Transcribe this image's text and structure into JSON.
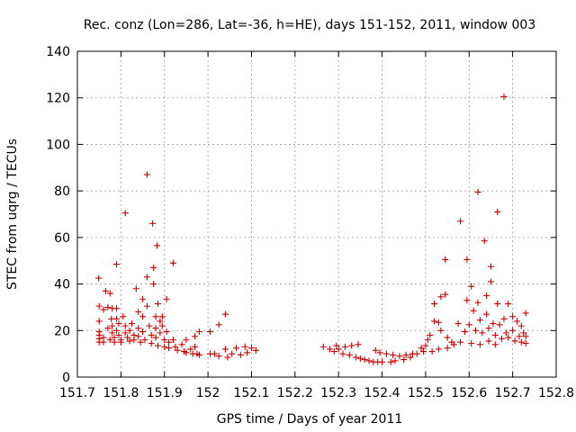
{
  "chart_data": {
    "type": "scatter",
    "title": "Rec. conz (Lon=286, Lat=-36, h=HE), days 151-152, 2011, window 003",
    "xlabel": "GPS time / Days of year 2011",
    "ylabel": "STEC from uqrg / TECUs",
    "xlim": [
      151.7,
      152.8
    ],
    "ylim": [
      0,
      140
    ],
    "x_ticks": [
      151.7,
      151.8,
      151.9,
      152.0,
      152.1,
      152.2,
      152.3,
      152.4,
      152.5,
      152.6,
      152.7,
      152.8
    ],
    "x_tick_labels": [
      "151.7",
      "151.8",
      "151.9",
      "152",
      "152.1",
      "152.2",
      "152.3",
      "152.4",
      "152.5",
      "152.6",
      "152.7",
      "152.8"
    ],
    "y_ticks": [
      0,
      20,
      40,
      60,
      80,
      100,
      120,
      140
    ],
    "y_tick_labels": [
      "0",
      "20",
      "40",
      "60",
      "80",
      "100",
      "120",
      "140"
    ],
    "grid": true,
    "marker": "+",
    "marker_color": "#cc0000",
    "series": [
      {
        "points": [
          [
            151.749,
            42.5
          ],
          [
            151.75,
            30.5
          ],
          [
            151.75,
            24
          ],
          [
            151.75,
            19.5
          ],
          [
            151.75,
            18
          ],
          [
            151.75,
            16.5
          ],
          [
            151.75,
            15
          ],
          [
            151.76,
            29
          ],
          [
            151.76,
            17
          ],
          [
            151.76,
            15
          ],
          [
            151.765,
            37
          ],
          [
            151.77,
            30
          ],
          [
            151.77,
            21
          ],
          [
            151.775,
            36
          ],
          [
            151.775,
            16
          ],
          [
            151.778,
            25
          ],
          [
            151.78,
            29.5
          ],
          [
            151.78,
            22
          ],
          [
            151.78,
            19
          ],
          [
            151.785,
            17
          ],
          [
            151.785,
            15
          ],
          [
            151.79,
            29.5
          ],
          [
            151.79,
            48.5
          ],
          [
            151.79,
            25
          ],
          [
            151.79,
            20
          ],
          [
            151.795,
            23
          ],
          [
            151.795,
            18
          ],
          [
            151.8,
            16
          ],
          [
            151.8,
            15
          ],
          [
            151.805,
            26
          ],
          [
            151.81,
            70.5
          ],
          [
            151.81,
            22
          ],
          [
            151.81,
            19
          ],
          [
            151.815,
            17
          ],
          [
            151.82,
            20
          ],
          [
            151.82,
            15.5
          ],
          [
            151.825,
            23
          ],
          [
            151.83,
            18
          ],
          [
            151.83,
            16
          ],
          [
            151.835,
            38
          ],
          [
            151.84,
            28
          ],
          [
            151.84,
            21
          ],
          [
            151.84,
            17.5
          ],
          [
            151.845,
            15
          ],
          [
            151.85,
            33.5
          ],
          [
            151.85,
            26
          ],
          [
            151.85,
            19.5
          ],
          [
            151.855,
            16
          ],
          [
            151.86,
            87
          ],
          [
            151.86,
            43
          ],
          [
            151.86,
            30.5
          ],
          [
            151.865,
            22
          ],
          [
            151.87,
            18
          ],
          [
            151.87,
            14.5
          ],
          [
            151.873,
            66
          ],
          [
            151.875,
            47
          ],
          [
            151.875,
            40
          ],
          [
            151.88,
            26
          ],
          [
            151.88,
            21
          ],
          [
            151.88,
            17
          ],
          [
            151.883,
            56.5
          ],
          [
            151.885,
            31.5
          ],
          [
            151.885,
            13.5
          ],
          [
            151.89,
            24
          ],
          [
            151.89,
            19
          ],
          [
            151.895,
            26
          ],
          [
            151.895,
            22
          ],
          [
            151.9,
            16
          ],
          [
            151.9,
            13
          ],
          [
            151.905,
            33.5
          ],
          [
            151.905,
            19.5
          ],
          [
            151.91,
            15
          ],
          [
            151.91,
            12.5
          ],
          [
            151.92,
            49
          ],
          [
            151.92,
            16
          ],
          [
            151.925,
            13
          ],
          [
            151.93,
            11.5
          ],
          [
            151.94,
            14
          ],
          [
            151.945,
            11
          ],
          [
            151.95,
            16
          ],
          [
            151.95,
            10.5
          ],
          [
            151.96,
            12
          ],
          [
            151.965,
            10
          ],
          [
            151.97,
            17.5
          ],
          [
            151.97,
            13
          ],
          [
            151.975,
            10
          ],
          [
            151.98,
            19.5
          ],
          [
            151.98,
            9.5
          ],
          [
            152.005,
            19.5
          ],
          [
            152.005,
            10
          ],
          [
            152.015,
            10
          ],
          [
            152.025,
            22.5
          ],
          [
            152.025,
            9
          ],
          [
            152.04,
            27
          ],
          [
            152.04,
            12
          ],
          [
            152.045,
            8.5
          ],
          [
            152.055,
            10
          ],
          [
            152.065,
            12.5
          ],
          [
            152.075,
            9.5
          ],
          [
            152.085,
            13
          ],
          [
            152.09,
            10.5
          ],
          [
            152.1,
            12.5
          ],
          [
            152.11,
            11.5
          ],
          [
            152.265,
            13
          ],
          [
            152.28,
            12
          ],
          [
            152.29,
            11
          ],
          [
            152.295,
            13.5
          ],
          [
            152.3,
            12
          ],
          [
            152.31,
            10
          ],
          [
            152.315,
            13
          ],
          [
            152.325,
            9.5
          ],
          [
            152.33,
            13.5
          ],
          [
            152.34,
            8.5
          ],
          [
            152.345,
            14
          ],
          [
            152.35,
            8
          ],
          [
            152.36,
            7.5
          ],
          [
            152.37,
            7
          ],
          [
            152.38,
            6.5
          ],
          [
            152.385,
            11.5
          ],
          [
            152.39,
            6.5
          ],
          [
            152.395,
            10.5
          ],
          [
            152.4,
            6.5
          ],
          [
            152.41,
            10
          ],
          [
            152.42,
            6.5
          ],
          [
            152.425,
            9.5
          ],
          [
            152.43,
            7
          ],
          [
            152.44,
            9
          ],
          [
            152.45,
            7.5
          ],
          [
            152.455,
            9.5
          ],
          [
            152.465,
            8.5
          ],
          [
            152.47,
            10
          ],
          [
            152.48,
            10
          ],
          [
            152.49,
            12.5
          ],
          [
            152.495,
            11
          ],
          [
            152.5,
            13.5
          ],
          [
            152.505,
            16
          ],
          [
            152.51,
            18
          ],
          [
            152.515,
            11
          ],
          [
            152.52,
            31.5
          ],
          [
            152.52,
            24
          ],
          [
            152.53,
            23.5
          ],
          [
            152.53,
            12
          ],
          [
            152.535,
            34.5
          ],
          [
            152.535,
            20
          ],
          [
            152.545,
            50.5
          ],
          [
            152.545,
            35.5
          ],
          [
            152.55,
            17
          ],
          [
            152.55,
            12.5
          ],
          [
            152.56,
            15
          ],
          [
            152.565,
            14
          ],
          [
            152.575,
            23
          ],
          [
            152.58,
            67
          ],
          [
            152.58,
            15
          ],
          [
            152.59,
            19.5
          ],
          [
            152.595,
            50.5
          ],
          [
            152.595,
            33
          ],
          [
            152.6,
            22.5
          ],
          [
            152.605,
            39
          ],
          [
            152.605,
            14.5
          ],
          [
            152.61,
            28.5
          ],
          [
            152.615,
            20
          ],
          [
            152.62,
            79.5
          ],
          [
            152.62,
            32
          ],
          [
            152.625,
            24.5
          ],
          [
            152.625,
            14
          ],
          [
            152.63,
            19
          ],
          [
            152.635,
            58.5
          ],
          [
            152.64,
            35
          ],
          [
            152.64,
            27
          ],
          [
            152.645,
            21
          ],
          [
            152.645,
            15.5
          ],
          [
            152.65,
            47.5
          ],
          [
            152.65,
            41
          ],
          [
            152.655,
            23
          ],
          [
            152.66,
            18
          ],
          [
            152.66,
            14
          ],
          [
            152.665,
            71
          ],
          [
            152.665,
            31.5
          ],
          [
            152.67,
            22.5
          ],
          [
            152.675,
            16.5
          ],
          [
            152.68,
            120.5
          ],
          [
            152.68,
            25
          ],
          [
            152.685,
            19
          ],
          [
            152.69,
            31.5
          ],
          [
            152.69,
            17
          ],
          [
            152.7,
            26
          ],
          [
            152.7,
            20
          ],
          [
            152.705,
            15.5
          ],
          [
            152.71,
            24
          ],
          [
            152.715,
            17.5
          ],
          [
            152.72,
            22
          ],
          [
            152.72,
            15
          ],
          [
            152.725,
            19
          ],
          [
            152.73,
            27.5
          ],
          [
            152.73,
            17.5
          ],
          [
            152.73,
            14.5
          ]
        ]
      }
    ]
  }
}
